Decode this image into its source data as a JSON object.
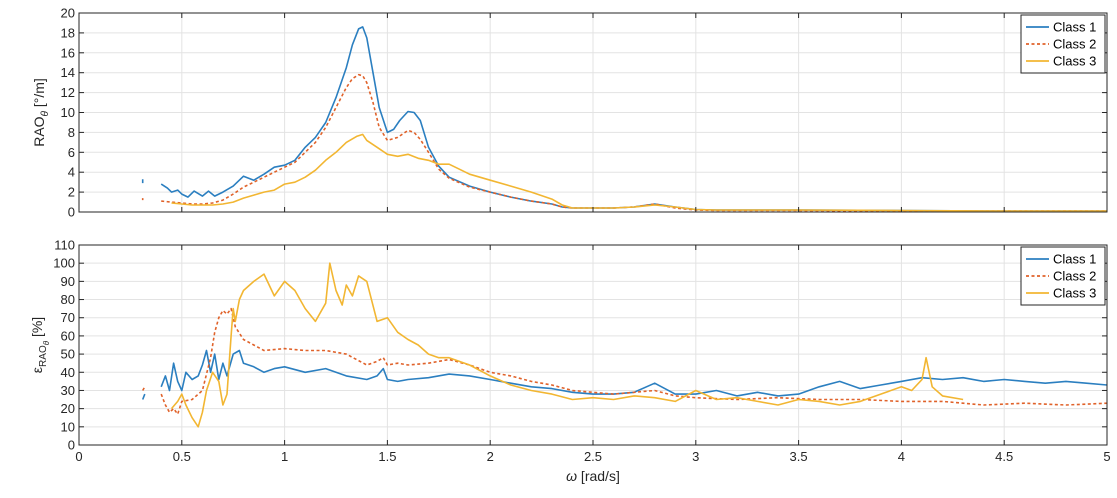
{
  "colors": {
    "class1": "#2b7fc0",
    "class2": "#e0622a",
    "class3": "#f2b632"
  },
  "chart_data": [
    {
      "type": "line",
      "ylabel_main": "RAO",
      "ylabel_sub": "θ",
      "ylabel_unit": " [°/m]",
      "xlim": [
        0,
        5
      ],
      "ylim": [
        0,
        20
      ],
      "xticks": [
        0.5,
        1,
        1.5,
        2,
        2.5,
        3,
        3.5,
        4,
        4.5,
        5
      ],
      "yticks": [
        0,
        2,
        4,
        6,
        8,
        10,
        12,
        14,
        16,
        18,
        20
      ],
      "grid": true,
      "legend": "top-right",
      "series": [
        {
          "name": "Class 1",
          "style": "solid",
          "x": [
            0.31,
            0.31,
            null,
            0.4,
            0.43,
            0.45,
            0.48,
            0.5,
            0.53,
            0.56,
            0.6,
            0.63,
            0.66,
            0.7,
            0.75,
            0.8,
            0.85,
            0.9,
            0.95,
            1.0,
            1.05,
            1.1,
            1.15,
            1.2,
            1.25,
            1.3,
            1.33,
            1.36,
            1.38,
            1.4,
            1.43,
            1.46,
            1.5,
            1.53,
            1.56,
            1.6,
            1.63,
            1.66,
            1.7,
            1.75,
            1.8,
            1.9,
            2.0,
            2.1,
            2.2,
            2.3,
            2.35,
            2.4,
            2.5,
            2.6,
            2.7,
            2.8,
            2.9,
            3.0,
            3.1,
            3.5,
            4.0,
            4.5,
            5.0
          ],
          "y": [
            3.3,
            2.9,
            null,
            2.8,
            2.4,
            2.0,
            2.2,
            1.8,
            1.5,
            2.1,
            1.6,
            2.1,
            1.6,
            2.0,
            2.6,
            3.6,
            3.2,
            3.8,
            4.5,
            4.7,
            5.2,
            6.5,
            7.5,
            9.0,
            11.5,
            14.5,
            16.8,
            18.4,
            18.6,
            17.5,
            14.0,
            10.5,
            8.0,
            8.3,
            9.2,
            10.1,
            10.0,
            9.2,
            6.5,
            4.6,
            3.5,
            2.6,
            2.0,
            1.5,
            1.1,
            0.8,
            0.5,
            0.4,
            0.4,
            0.4,
            0.5,
            0.8,
            0.5,
            0.25,
            0.2,
            0.2,
            0.15,
            0.1,
            0.1
          ]
        },
        {
          "name": "Class 2",
          "style": "dashed",
          "x": [
            0.31,
            0.31,
            null,
            0.4,
            0.45,
            0.5,
            0.55,
            0.6,
            0.65,
            0.7,
            0.75,
            0.8,
            0.85,
            0.9,
            0.95,
            1.0,
            1.05,
            1.1,
            1.15,
            1.2,
            1.25,
            1.3,
            1.33,
            1.36,
            1.38,
            1.4,
            1.43,
            1.46,
            1.5,
            1.55,
            1.6,
            1.63,
            1.66,
            1.7,
            1.75,
            1.8,
            1.9,
            2.0,
            2.1,
            2.2,
            2.3,
            2.35,
            2.4,
            2.5,
            2.6,
            2.7,
            2.8,
            2.9,
            3.0,
            3.1,
            3.5,
            4.0,
            4.5,
            5.0
          ],
          "y": [
            1.4,
            1.2,
            null,
            1.1,
            1.0,
            0.9,
            0.8,
            0.8,
            0.9,
            1.2,
            1.8,
            2.5,
            3.0,
            3.5,
            4.0,
            4.5,
            5.0,
            6.0,
            7.0,
            8.5,
            10.5,
            12.5,
            13.4,
            13.8,
            13.7,
            13.0,
            11.0,
            8.5,
            7.2,
            7.5,
            8.2,
            8.0,
            7.3,
            6.0,
            4.3,
            3.4,
            2.5,
            2.0,
            1.5,
            1.1,
            0.8,
            0.5,
            0.4,
            0.4,
            0.4,
            0.5,
            0.8,
            0.4,
            0.2,
            0.15,
            0.15,
            0.1,
            0.1,
            0.1
          ]
        },
        {
          "name": "Class 3",
          "style": "solid",
          "x": [
            0.45,
            0.5,
            0.55,
            0.6,
            0.65,
            0.7,
            0.75,
            0.8,
            0.85,
            0.9,
            0.95,
            1.0,
            1.05,
            1.1,
            1.15,
            1.2,
            1.25,
            1.3,
            1.35,
            1.38,
            1.4,
            1.45,
            1.5,
            1.55,
            1.6,
            1.65,
            1.7,
            1.75,
            1.8,
            1.85,
            1.9,
            2.0,
            2.1,
            2.2,
            2.3,
            2.35,
            2.4,
            2.5,
            2.6,
            2.7,
            2.8,
            2.9,
            3.0,
            3.1,
            3.5,
            4.0,
            4.5,
            5.0
          ],
          "y": [
            0.9,
            0.8,
            0.7,
            0.7,
            0.7,
            0.8,
            1.0,
            1.4,
            1.7,
            2.0,
            2.2,
            2.8,
            3.0,
            3.5,
            4.2,
            5.2,
            6.0,
            7.0,
            7.6,
            7.8,
            7.2,
            6.5,
            5.8,
            5.6,
            5.8,
            5.4,
            5.2,
            4.8,
            4.8,
            4.3,
            3.8,
            3.2,
            2.6,
            2.0,
            1.3,
            0.7,
            0.4,
            0.4,
            0.4,
            0.5,
            0.7,
            0.5,
            0.25,
            0.2,
            0.2,
            0.15,
            0.1,
            0.1
          ]
        }
      ]
    },
    {
      "type": "line",
      "ylabel_main": "ε",
      "ylabel_sub": "RAO",
      "ylabel_subsub": "θ",
      "ylabel_unit": " [%]",
      "xlabel_sym": "ω",
      "xlabel_unit": " [rad/s]",
      "xlim": [
        0,
        5
      ],
      "ylim": [
        0,
        110
      ],
      "xticks": [
        0,
        0.5,
        1,
        1.5,
        2,
        2.5,
        3,
        3.5,
        4,
        4.5,
        5
      ],
      "yticks": [
        0,
        10,
        20,
        30,
        40,
        50,
        60,
        70,
        80,
        90,
        100,
        110
      ],
      "grid": true,
      "legend": "top-right",
      "series": [
        {
          "name": "Class 1",
          "style": "solid",
          "x": [
            0.31,
            0.32,
            null,
            0.4,
            0.42,
            0.44,
            0.46,
            0.48,
            0.5,
            0.52,
            0.55,
            0.58,
            0.6,
            0.62,
            0.64,
            0.66,
            0.68,
            0.7,
            0.72,
            0.75,
            0.78,
            0.8,
            0.85,
            0.9,
            0.95,
            1.0,
            1.1,
            1.2,
            1.3,
            1.4,
            1.45,
            1.48,
            1.5,
            1.55,
            1.6,
            1.7,
            1.8,
            1.9,
            2.0,
            2.1,
            2.2,
            2.3,
            2.4,
            2.5,
            2.6,
            2.7,
            2.8,
            2.9,
            3.0,
            3.1,
            3.2,
            3.3,
            3.4,
            3.5,
            3.6,
            3.7,
            3.8,
            3.9,
            4.0,
            4.1,
            4.2,
            4.3,
            4.4,
            4.5,
            4.6,
            4.7,
            4.8,
            4.9,
            5.0
          ],
          "y": [
            25,
            28,
            null,
            32,
            38,
            30,
            45,
            35,
            30,
            40,
            36,
            38,
            44,
            52,
            40,
            50,
            36,
            45,
            38,
            50,
            52,
            45,
            43,
            40,
            42,
            43,
            40,
            42,
            38,
            36,
            38,
            42,
            36,
            35,
            36,
            37,
            39,
            38,
            36,
            34,
            32,
            31,
            29,
            28,
            28,
            29,
            34,
            28,
            28,
            30,
            27,
            29,
            27,
            28,
            32,
            35,
            31,
            33,
            35,
            37,
            36,
            37,
            35,
            36,
            35,
            34,
            35,
            34,
            33
          ]
        },
        {
          "name": "Class 2",
          "style": "dashed",
          "x": [
            0.31,
            0.32,
            null,
            0.4,
            0.42,
            0.44,
            0.46,
            0.48,
            0.5,
            0.55,
            0.6,
            0.64,
            0.66,
            0.68,
            0.7,
            0.72,
            0.74,
            0.76,
            0.8,
            0.85,
            0.9,
            1.0,
            1.1,
            1.2,
            1.3,
            1.4,
            1.45,
            1.48,
            1.5,
            1.55,
            1.6,
            1.7,
            1.8,
            1.9,
            2.0,
            2.1,
            2.2,
            2.3,
            2.4,
            2.5,
            2.6,
            2.7,
            2.8,
            2.9,
            3.0,
            3.2,
            3.4,
            3.6,
            3.8,
            4.0,
            4.2,
            4.4,
            4.6,
            4.8,
            5.0
          ],
          "y": [
            30,
            32,
            null,
            28,
            22,
            18,
            20,
            17,
            24,
            25,
            30,
            48,
            62,
            70,
            74,
            72,
            75,
            65,
            58,
            55,
            52,
            53,
            52,
            52,
            50,
            44,
            46,
            48,
            44,
            45,
            44,
            45,
            47,
            44,
            40,
            38,
            35,
            33,
            30,
            29,
            28,
            29,
            30,
            27,
            26,
            25,
            26,
            25,
            25,
            24,
            24,
            22,
            23,
            22,
            23
          ]
        },
        {
          "name": "Class 3",
          "style": "solid",
          "x": [
            0.45,
            0.48,
            0.5,
            0.52,
            0.55,
            0.58,
            0.6,
            0.62,
            0.65,
            0.68,
            0.7,
            0.72,
            0.74,
            0.75,
            0.76,
            0.78,
            0.8,
            0.85,
            0.9,
            0.95,
            1.0,
            1.05,
            1.1,
            1.15,
            1.2,
            1.22,
            1.25,
            1.28,
            1.3,
            1.33,
            1.36,
            1.4,
            1.45,
            1.5,
            1.55,
            1.6,
            1.65,
            1.7,
            1.75,
            1.8,
            1.9,
            2.0,
            2.1,
            2.2,
            2.3,
            2.4,
            2.5,
            2.6,
            2.7,
            2.8,
            2.9,
            3.0,
            3.1,
            3.2,
            3.3,
            3.4,
            3.5,
            3.6,
            3.7,
            3.8,
            3.9,
            4.0,
            4.05,
            4.1,
            4.12,
            4.15,
            4.2,
            4.3
          ],
          "y": [
            20,
            24,
            28,
            22,
            15,
            10,
            18,
            30,
            40,
            35,
            22,
            28,
            60,
            75,
            68,
            80,
            85,
            90,
            94,
            82,
            90,
            85,
            75,
            68,
            78,
            100,
            85,
            77,
            88,
            82,
            93,
            90,
            68,
            70,
            62,
            58,
            55,
            50,
            48,
            48,
            44,
            38,
            33,
            30,
            28,
            25,
            26,
            25,
            27,
            26,
            24,
            30,
            25,
            26,
            24,
            22,
            25,
            24,
            22,
            24,
            28,
            32,
            30,
            36,
            48,
            32,
            27,
            25
          ]
        }
      ]
    }
  ]
}
